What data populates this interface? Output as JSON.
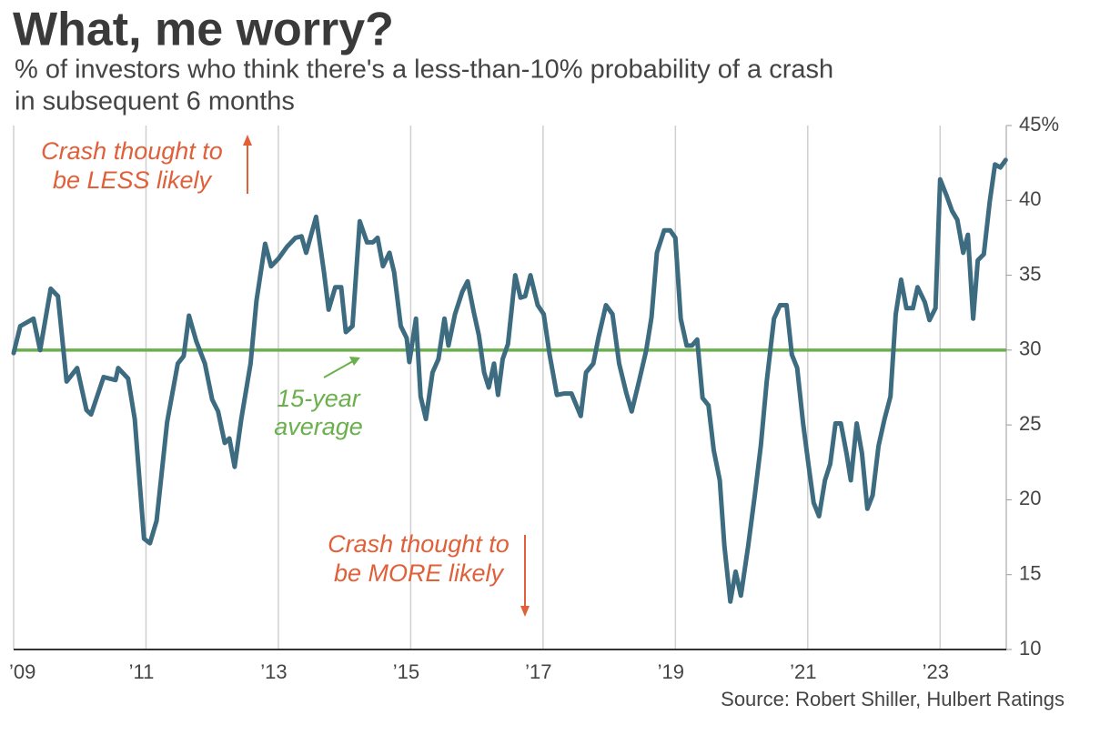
{
  "chart_data": {
    "type": "line",
    "title": "What, me worry?",
    "subtitle": [
      "% of investors who think there's a less-than-10% probability of a crash",
      "in subsequent 6 months"
    ],
    "source": "Source: Robert Shiller, Hulbert Ratings",
    "annotations": [
      {
        "text": [
          "Crash thought to",
          "be LESS likely"
        ],
        "color": "#e0603a"
      },
      {
        "text": [
          "Crash thought to",
          "be MORE likely"
        ],
        "color": "#e0603a"
      }
    ],
    "reference_line": {
      "value": 30,
      "label": [
        "15-year",
        "average"
      ],
      "color": "#6ab04c"
    },
    "xlim": [
      2009,
      2024
    ],
    "xticks": [
      {
        "value": 2009,
        "label": "’09"
      },
      {
        "value": 2011,
        "label": "’11"
      },
      {
        "value": 2013,
        "label": "’13"
      },
      {
        "value": 2015,
        "label": "’15"
      },
      {
        "value": 2017,
        "label": "’17"
      },
      {
        "value": 2019,
        "label": "’19"
      },
      {
        "value": 2021,
        "label": "’21"
      },
      {
        "value": 2023,
        "label": "’23"
      }
    ],
    "ylim": [
      10,
      45
    ],
    "yticks": [
      10,
      15,
      20,
      25,
      30,
      35,
      40,
      {
        "value": 45,
        "label": "45%"
      }
    ],
    "grid": "x",
    "series": [
      {
        "color": "#3d6b80",
        "x": [
          2009.0,
          2009.1,
          2009.3,
          2009.4,
          2009.56,
          2009.67,
          2009.8,
          2009.96,
          2010.1,
          2010.17,
          2010.36,
          2010.54,
          2010.58,
          2010.73,
          2010.83,
          2010.97,
          2011.06,
          2011.16,
          2011.32,
          2011.48,
          2011.57,
          2011.65,
          2011.76,
          2011.89,
          2012.0,
          2012.09,
          2012.19,
          2012.26,
          2012.34,
          2012.44,
          2012.58,
          2012.67,
          2012.8,
          2012.89,
          2013.0,
          2013.13,
          2013.26,
          2013.35,
          2013.42,
          2013.57,
          2013.69,
          2013.76,
          2013.86,
          2013.95,
          2014.02,
          2014.12,
          2014.23,
          2014.34,
          2014.43,
          2014.5,
          2014.58,
          2014.68,
          2014.75,
          2014.85,
          2014.94,
          2014.98,
          2015.08,
          2015.15,
          2015.23,
          2015.33,
          2015.42,
          2015.51,
          2015.57,
          2015.67,
          2015.78,
          2015.86,
          2015.95,
          2016.03,
          2016.11,
          2016.18,
          2016.26,
          2016.32,
          2016.39,
          2016.47,
          2016.58,
          2016.66,
          2016.73,
          2016.81,
          2016.92,
          2017.01,
          2017.1,
          2017.21,
          2017.32,
          2017.43,
          2017.57,
          2017.65,
          2017.76,
          2017.84,
          2017.95,
          2018.05,
          2018.15,
          2018.26,
          2018.34,
          2018.45,
          2018.56,
          2018.64,
          2018.72,
          2018.83,
          2018.92,
          2019.0,
          2019.08,
          2019.17,
          2019.25,
          2019.33,
          2019.41,
          2019.5,
          2019.58,
          2019.67,
          2019.74,
          2019.83,
          2019.91,
          2019.99,
          2020.1,
          2020.2,
          2020.29,
          2020.38,
          2020.49,
          2020.58,
          2020.68,
          2020.76,
          2020.84,
          2020.93,
          2021.01,
          2021.09,
          2021.17,
          2021.26,
          2021.34,
          2021.42,
          2021.5,
          2021.59,
          2021.65,
          2021.74,
          2021.82,
          2021.9,
          2021.98,
          2022.07,
          2022.16,
          2022.25,
          2022.33,
          2022.41,
          2022.49,
          2022.59,
          2022.66,
          2022.77,
          2022.84,
          2022.93,
          2023.0,
          2023.1,
          2023.18,
          2023.26,
          2023.35,
          2023.42,
          2023.5,
          2023.57,
          2023.66,
          2023.75,
          2023.83,
          2023.91,
          2023.99
        ],
        "values": [
          29.8,
          31.6,
          32.1,
          30.0,
          34.1,
          33.6,
          27.9,
          28.8,
          26.0,
          25.7,
          28.2,
          28.0,
          28.8,
          28.1,
          25.4,
          17.4,
          17.1,
          18.6,
          25.2,
          29.1,
          29.6,
          32.3,
          30.6,
          29.1,
          26.7,
          25.9,
          23.8,
          24.1,
          22.2,
          25.4,
          29.1,
          33.3,
          37.1,
          35.6,
          36.1,
          36.9,
          37.5,
          37.6,
          36.5,
          38.9,
          35.2,
          32.7,
          34.2,
          34.2,
          31.2,
          31.6,
          38.6,
          37.2,
          37.2,
          37.5,
          35.6,
          36.5,
          35.2,
          31.6,
          30.8,
          29.2,
          32.1,
          26.9,
          25.4,
          28.5,
          29.4,
          32.1,
          30.3,
          32.4,
          33.9,
          34.6,
          32.6,
          31.0,
          28.5,
          27.5,
          29.1,
          27.0,
          29.4,
          30.4,
          35.0,
          33.5,
          33.6,
          35.0,
          33.0,
          32.4,
          29.7,
          27.0,
          27.1,
          27.1,
          25.6,
          28.5,
          29.1,
          30.9,
          33.0,
          32.4,
          29.1,
          27.1,
          25.9,
          27.9,
          30.0,
          32.2,
          36.5,
          38.0,
          38.0,
          37.5,
          32.1,
          30.3,
          30.3,
          30.7,
          26.8,
          26.3,
          23.3,
          21.3,
          16.9,
          13.2,
          15.2,
          13.6,
          16.9,
          20.3,
          23.6,
          27.9,
          32.1,
          33.0,
          33.0,
          29.7,
          28.8,
          25.1,
          22.4,
          19.8,
          18.9,
          21.3,
          22.4,
          25.1,
          25.1,
          23.0,
          21.3,
          25.1,
          23.1,
          19.4,
          20.3,
          23.6,
          25.4,
          26.9,
          32.4,
          34.7,
          32.8,
          32.8,
          34.2,
          33.2,
          32.0,
          32.8,
          41.4,
          40.3,
          39.3,
          38.7,
          36.5,
          37.7,
          32.1,
          36.0,
          36.4,
          39.9,
          42.4,
          42.2,
          42.7
        ]
      }
    ]
  }
}
